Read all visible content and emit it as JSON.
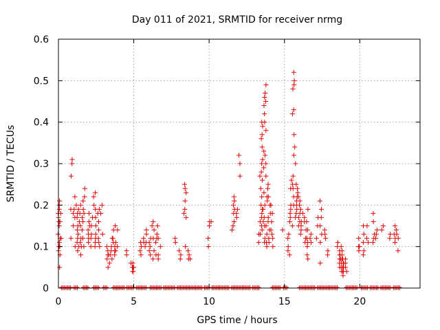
{
  "chart_data": {
    "type": "scatter",
    "title": "Day 011 of 2021, SRMTID for receiver nrmg",
    "xlabel": "GPS time / hours",
    "ylabel": "SRMTID / TECUs",
    "xlim": [
      0,
      24
    ],
    "ylim": [
      0,
      0.6
    ],
    "grid": true,
    "marker": "+",
    "color": "#e00000",
    "xticks": [
      0,
      5,
      10,
      15,
      20
    ],
    "xtick_labels": [
      "0",
      "5",
      "10",
      "15",
      "20"
    ],
    "yticks": [
      0,
      0.1,
      0.2,
      0.3,
      0.4,
      0.5,
      0.6
    ],
    "ytick_labels": [
      "0",
      "0.1",
      "0.2",
      "0.3",
      "0.4",
      "0.5",
      "0.6"
    ],
    "series": [
      {
        "name": "SRMTID",
        "clusters": [
          {
            "x": 0.05,
            "ys": [
              0.2,
              0.19,
              0.18,
              0.17,
              0.16,
              0.15,
              0.13,
              0.12,
              0.11,
              0.1,
              0.09,
              0.08,
              0.05
            ]
          },
          {
            "x": 0.15,
            "ys": [
              0.21,
              0.18,
              0.16,
              0.12,
              0.1
            ]
          },
          {
            "x": 0.9,
            "ys": [
              0.31,
              0.3,
              0.27,
              0.19,
              0.18,
              0.15,
              0.12
            ]
          },
          {
            "x": 1.1,
            "ys": [
              0.22,
              0.2,
              0.19,
              0.17,
              0.1
            ]
          },
          {
            "x": 1.3,
            "ys": [
              0.19,
              0.18,
              0.17,
              0.16,
              0.15,
              0.14,
              0.13,
              0.12,
              0.11,
              0.1,
              0.09
            ]
          },
          {
            "x": 1.5,
            "ys": [
              0.2,
              0.18,
              0.17,
              0.15,
              0.14,
              0.12,
              0.11,
              0.1,
              0.08
            ]
          },
          {
            "x": 1.7,
            "ys": [
              0.24,
              0.22,
              0.21,
              0.19,
              0.18,
              0.16,
              0.12,
              0.1
            ]
          },
          {
            "x": 2.0,
            "ys": [
              0.18,
              0.16,
              0.15,
              0.14,
              0.13,
              0.12,
              0.11
            ]
          },
          {
            "x": 2.2,
            "ys": [
              0.17,
              0.15,
              0.13,
              0.12,
              0.1
            ]
          },
          {
            "x": 2.4,
            "ys": [
              0.23,
              0.22,
              0.2,
              0.19,
              0.17,
              0.15,
              0.13,
              0.12,
              0.11,
              0.1
            ]
          },
          {
            "x": 2.7,
            "ys": [
              0.19,
              0.18,
              0.16,
              0.14,
              0.12,
              0.11,
              0.1
            ]
          },
          {
            "x": 2.85,
            "ys": [
              0.2,
              0.18,
              0.13
            ]
          },
          {
            "x": 3.3,
            "ys": [
              0.1,
              0.09,
              0.08,
              0.08,
              0.07,
              0.06,
              0.05
            ]
          },
          {
            "x": 3.5,
            "ys": [
              0.12,
              0.1,
              0.09,
              0.08,
              0.07
            ]
          },
          {
            "x": 3.7,
            "ys": [
              0.15,
              0.14,
              0.12,
              0.11,
              0.1,
              0.09,
              0.08
            ]
          },
          {
            "x": 3.85,
            "ys": [
              0.14,
              0.11,
              0.1,
              0.09
            ]
          },
          {
            "x": 4.6,
            "ys": [
              0.09,
              0.08
            ]
          },
          {
            "x": 4.9,
            "ys": [
              0.06,
              0.05,
              0.05,
              0.04
            ]
          },
          {
            "x": 5.0,
            "ys": [
              0.06,
              0.05,
              0.04
            ]
          },
          {
            "x": 5.5,
            "ys": [
              0.11,
              0.1,
              0.09,
              0.08
            ]
          },
          {
            "x": 5.7,
            "ys": [
              0.12,
              0.11,
              0.1
            ]
          },
          {
            "x": 5.9,
            "ys": [
              0.14,
              0.13,
              0.11
            ]
          },
          {
            "x": 6.1,
            "ys": [
              0.12,
              0.11,
              0.1,
              0.09,
              0.08
            ]
          },
          {
            "x": 6.3,
            "ys": [
              0.16,
              0.15,
              0.14,
              0.12,
              0.09,
              0.07
            ]
          },
          {
            "x": 6.5,
            "ys": [
              0.15,
              0.13,
              0.12,
              0.11,
              0.08
            ]
          },
          {
            "x": 6.7,
            "ys": [
              0.12,
              0.1,
              0.08,
              0.07
            ]
          },
          {
            "x": 7.8,
            "ys": [
              0.12,
              0.11
            ]
          },
          {
            "x": 8.1,
            "ys": [
              0.09,
              0.08,
              0.07
            ]
          },
          {
            "x": 8.4,
            "ys": [
              0.25,
              0.24,
              0.23,
              0.21,
              0.19,
              0.18,
              0.17,
              0.1
            ]
          },
          {
            "x": 8.6,
            "ys": [
              0.09,
              0.08,
              0.07
            ]
          },
          {
            "x": 8.75,
            "ys": [
              0.07
            ]
          },
          {
            "x": 9.95,
            "ys": [
              0.16,
              0.15,
              0.12,
              0.1
            ]
          },
          {
            "x": 10.1,
            "ys": [
              0.16
            ]
          },
          {
            "x": 11.6,
            "ys": [
              0.22,
              0.21,
              0.2,
              0.19,
              0.18,
              0.16,
              0.15,
              0.14
            ]
          },
          {
            "x": 11.8,
            "ys": [
              0.19,
              0.18,
              0.17
            ]
          },
          {
            "x": 12.0,
            "ys": [
              0.32,
              0.3,
              0.27
            ]
          },
          {
            "x": 13.3,
            "ys": [
              0.13,
              0.11
            ]
          },
          {
            "x": 13.45,
            "ys": [
              0.34,
              0.3,
              0.27,
              0.24,
              0.2,
              0.19,
              0.17,
              0.16,
              0.15,
              0.13
            ]
          },
          {
            "x": 13.55,
            "ys": [
              0.4,
              0.39,
              0.37,
              0.36,
              0.33,
              0.31,
              0.28,
              0.26,
              0.22,
              0.19,
              0.18,
              0.16,
              0.14
            ]
          },
          {
            "x": 13.7,
            "ys": [
              0.49,
              0.47,
              0.46,
              0.45,
              0.44,
              0.42,
              0.4,
              0.38,
              0.32,
              0.29,
              0.23,
              0.2,
              0.17,
              0.15,
              0.12,
              0.11
            ]
          },
          {
            "x": 13.85,
            "ys": [
              0.3,
              0.27,
              0.24,
              0.22,
              0.21,
              0.17,
              0.15,
              0.13,
              0.11,
              0.1
            ]
          },
          {
            "x": 14.0,
            "ys": [
              0.25,
              0.22,
              0.2,
              0.18,
              0.16,
              0.14,
              0.12,
              0.11
            ]
          },
          {
            "x": 14.15,
            "ys": [
              0.2,
              0.18,
              0.16,
              0.14,
              0.13,
              0.12,
              0.1
            ]
          },
          {
            "x": 14.9,
            "ys": [
              0.14
            ]
          },
          {
            "x": 15.3,
            "ys": [
              0.18,
              0.16,
              0.13,
              0.12,
              0.1,
              0.09,
              0.08
            ]
          },
          {
            "x": 15.45,
            "ys": [
              0.26,
              0.25,
              0.24,
              0.2,
              0.19,
              0.17,
              0.15
            ]
          },
          {
            "x": 15.6,
            "ys": [
              0.52,
              0.5,
              0.49,
              0.48,
              0.43,
              0.42,
              0.37,
              0.34,
              0.32,
              0.27,
              0.24,
              0.22,
              0.2
            ]
          },
          {
            "x": 15.8,
            "ys": [
              0.3,
              0.25,
              0.24,
              0.22,
              0.21,
              0.2,
              0.19,
              0.18,
              0.17
            ]
          },
          {
            "x": 15.95,
            "ys": [
              0.23,
              0.22,
              0.21,
              0.2,
              0.18,
              0.17,
              0.16,
              0.15
            ]
          },
          {
            "x": 16.15,
            "ys": [
              0.19,
              0.18,
              0.16,
              0.15,
              0.14,
              0.13
            ]
          },
          {
            "x": 16.35,
            "ys": [
              0.17,
              0.16,
              0.14,
              0.12,
              0.11
            ]
          },
          {
            "x": 16.55,
            "ys": [
              0.19,
              0.16,
              0.14,
              0.12,
              0.11,
              0.1,
              0.08,
              0.07
            ]
          },
          {
            "x": 16.75,
            "ys": [
              0.13,
              0.12,
              0.11
            ]
          },
          {
            "x": 17.2,
            "ys": [
              0.17,
              0.15,
              0.12
            ]
          },
          {
            "x": 17.45,
            "ys": [
              0.21,
              0.19,
              0.17,
              0.15,
              0.13,
              0.11,
              0.06
            ]
          },
          {
            "x": 17.7,
            "ys": [
              0.14,
              0.13,
              0.12
            ]
          },
          {
            "x": 17.8,
            "ys": [
              0.09,
              0.08
            ]
          },
          {
            "x": 18.6,
            "ys": [
              0.11,
              0.1,
              0.09,
              0.08,
              0.07,
              0.06
            ]
          },
          {
            "x": 18.75,
            "ys": [
              0.1,
              0.09,
              0.08,
              0.07,
              0.06,
              0.05,
              0.05
            ]
          },
          {
            "x": 18.85,
            "ys": [
              0.08,
              0.07,
              0.06,
              0.05,
              0.04,
              0.04,
              0.03
            ]
          },
          {
            "x": 18.95,
            "ys": [
              0.07,
              0.06,
              0.05,
              0.05,
              0.04,
              0.04
            ]
          },
          {
            "x": 19.05,
            "ys": [
              0.07,
              0.06,
              0.05,
              0.04
            ]
          },
          {
            "x": 20.0,
            "ys": [
              0.12,
              0.1,
              0.1,
              0.09
            ]
          },
          {
            "x": 20.3,
            "ys": [
              0.15,
              0.13,
              0.11,
              0.09,
              0.08
            ]
          },
          {
            "x": 20.5,
            "ys": [
              0.15,
              0.12,
              0.11
            ]
          },
          {
            "x": 20.9,
            "ys": [
              0.18,
              0.16,
              0.13,
              0.12,
              0.11
            ]
          },
          {
            "x": 21.1,
            "ys": [
              0.14,
              0.13,
              0.12
            ]
          },
          {
            "x": 21.5,
            "ys": [
              0.15,
              0.14
            ]
          },
          {
            "x": 22.0,
            "ys": [
              0.13,
              0.12
            ]
          },
          {
            "x": 22.35,
            "ys": [
              0.15,
              0.14,
              0.13,
              0.12,
              0.11
            ]
          },
          {
            "x": 22.5,
            "ys": [
              0.13,
              0.12,
              0.09
            ]
          }
        ],
        "zero_segments": [
          [
            0.2,
            0.85
          ],
          [
            1.05,
            1.35
          ],
          [
            1.65,
            2.05
          ],
          [
            2.35,
            2.75
          ],
          [
            3.0,
            3.3
          ],
          [
            3.65,
            4.45
          ],
          [
            4.55,
            5.05
          ],
          [
            5.2,
            5.9
          ],
          [
            6.1,
            6.85
          ],
          [
            7.0,
            7.8
          ],
          [
            7.9,
            8.65
          ],
          [
            8.7,
            9.6
          ],
          [
            9.7,
            10.1
          ],
          [
            10.2,
            11.4
          ],
          [
            11.5,
            12.8
          ],
          [
            12.9,
            13.4
          ],
          [
            14.2,
            14.8
          ],
          [
            14.95,
            15.25
          ],
          [
            16.0,
            17.1
          ],
          [
            17.2,
            18.55
          ],
          [
            19.1,
            19.9
          ],
          [
            20.1,
            20.6
          ],
          [
            20.7,
            21.3
          ],
          [
            21.4,
            22.1
          ],
          [
            22.25,
            22.7
          ]
        ]
      }
    ]
  }
}
